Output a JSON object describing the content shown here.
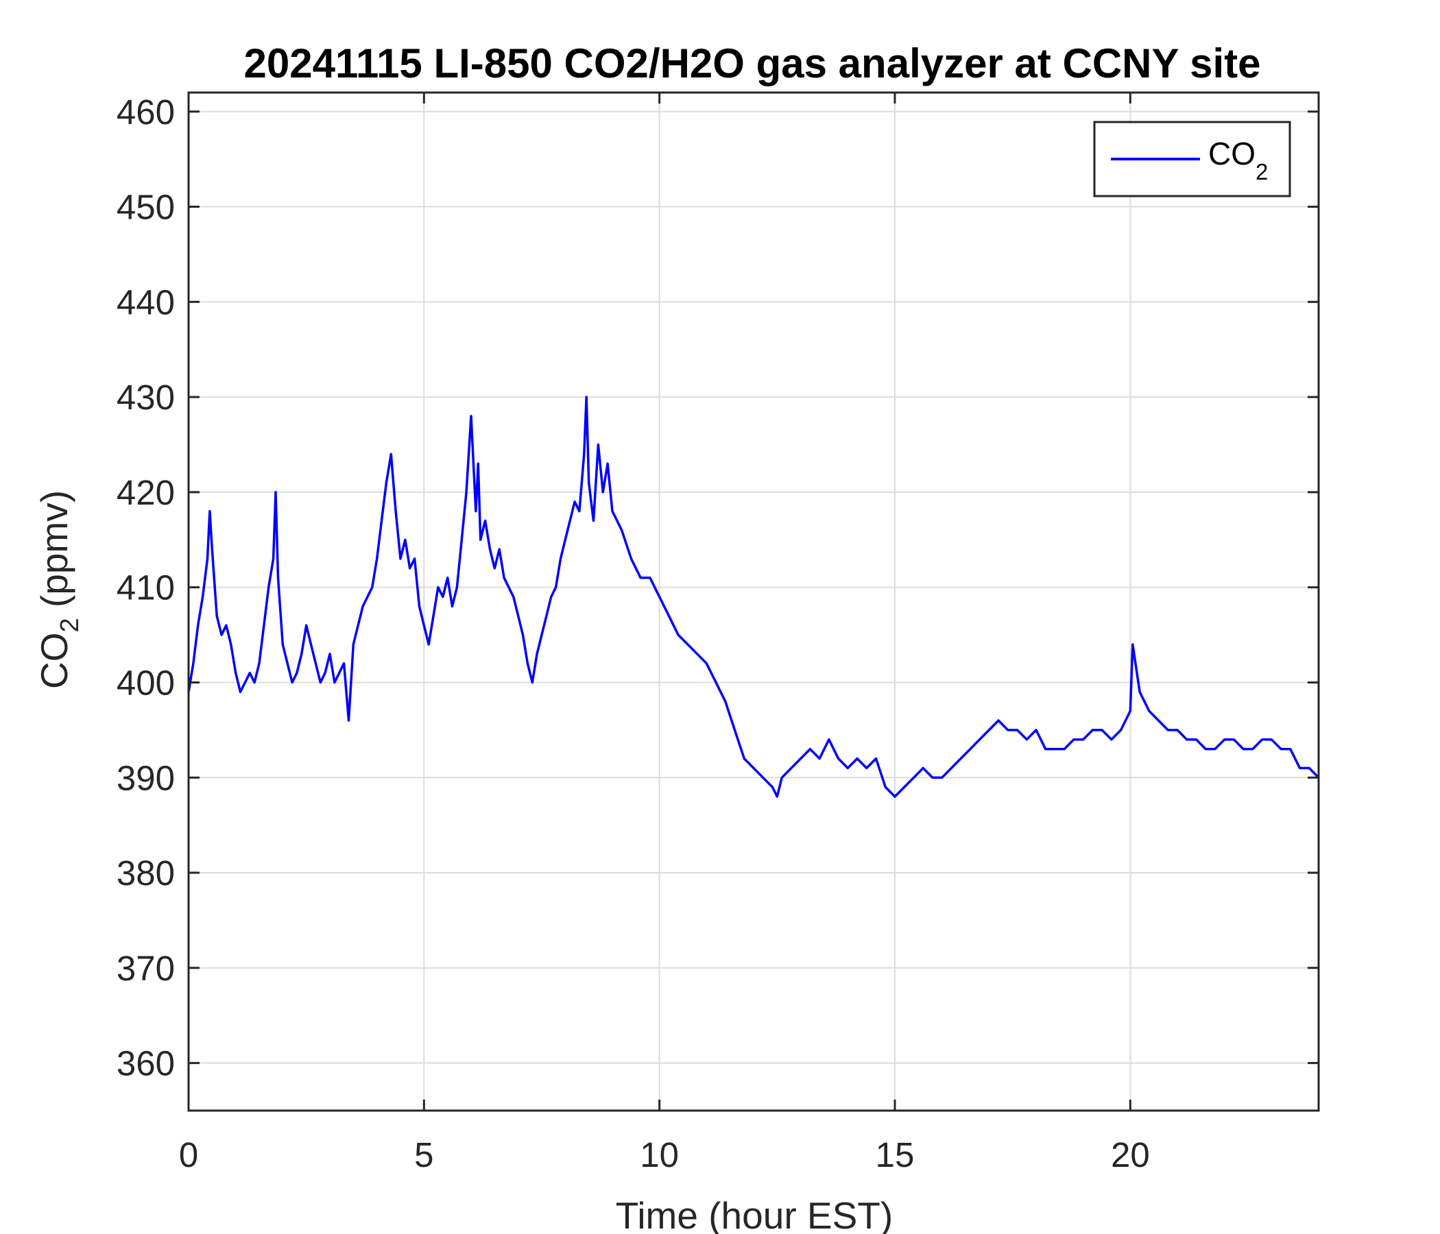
{
  "chart_data": {
    "type": "line",
    "title": "20241115 LI-850 CO2/H2O gas analyzer at CCNY site",
    "xlabel": "Time (hour EST)",
    "ylabel": {
      "base": "CO",
      "sub": "2",
      "rest": " (ppmv)"
    },
    "xlim": [
      0,
      24
    ],
    "ylim": [
      355,
      462
    ],
    "xticks": [
      0,
      5,
      10,
      15,
      20
    ],
    "yticks": [
      360,
      370,
      380,
      390,
      400,
      410,
      420,
      430,
      440,
      450,
      460
    ],
    "grid": true,
    "legend": {
      "position": "top-right"
    },
    "series": [
      {
        "name": {
          "base": "CO",
          "sub": "2"
        },
        "color": "#0000ff",
        "x": [
          0,
          0.1,
          0.2,
          0.3,
          0.4,
          0.45,
          0.5,
          0.6,
          0.7,
          0.8,
          0.9,
          1.0,
          1.1,
          1.2,
          1.3,
          1.4,
          1.5,
          1.6,
          1.7,
          1.8,
          1.85,
          1.9,
          2.0,
          2.1,
          2.2,
          2.3,
          2.4,
          2.5,
          2.6,
          2.7,
          2.8,
          2.9,
          3.0,
          3.1,
          3.2,
          3.3,
          3.4,
          3.5,
          3.6,
          3.7,
          3.8,
          3.9,
          4.0,
          4.1,
          4.2,
          4.3,
          4.4,
          4.5,
          4.6,
          4.7,
          4.8,
          4.9,
          5.0,
          5.1,
          5.2,
          5.3,
          5.4,
          5.5,
          5.6,
          5.7,
          5.8,
          5.9,
          6.0,
          6.1,
          6.15,
          6.2,
          6.3,
          6.4,
          6.5,
          6.6,
          6.7,
          6.8,
          6.9,
          7.0,
          7.1,
          7.2,
          7.3,
          7.4,
          7.5,
          7.6,
          7.7,
          7.8,
          7.9,
          8.0,
          8.1,
          8.2,
          8.3,
          8.4,
          8.45,
          8.5,
          8.6,
          8.7,
          8.8,
          8.9,
          9.0,
          9.2,
          9.4,
          9.6,
          9.8,
          10.0,
          10.2,
          10.4,
          10.6,
          10.8,
          11.0,
          11.2,
          11.4,
          11.6,
          11.8,
          12.0,
          12.2,
          12.4,
          12.5,
          12.6,
          12.8,
          13.0,
          13.2,
          13.4,
          13.6,
          13.8,
          14.0,
          14.2,
          14.4,
          14.6,
          14.8,
          15.0,
          15.2,
          15.4,
          15.6,
          15.8,
          16.0,
          16.2,
          16.4,
          16.6,
          16.8,
          17.0,
          17.2,
          17.4,
          17.6,
          17.8,
          18.0,
          18.2,
          18.4,
          18.6,
          18.8,
          19.0,
          19.2,
          19.4,
          19.6,
          19.8,
          20.0,
          20.05,
          20.2,
          20.4,
          20.6,
          20.8,
          21.0,
          21.2,
          21.4,
          21.6,
          21.8,
          22.0,
          22.2,
          22.4,
          22.6,
          22.8,
          23.0,
          23.2,
          23.4,
          23.6,
          23.8,
          24.0
        ],
        "values": [
          399,
          402,
          406,
          409,
          413,
          418,
          414,
          407,
          405,
          406,
          404,
          401,
          399,
          400,
          401,
          400,
          402,
          406,
          410,
          413,
          420,
          411,
          404,
          402,
          400,
          401,
          403,
          406,
          404,
          402,
          400,
          401,
          403,
          400,
          401,
          402,
          396,
          404,
          406,
          408,
          409,
          410,
          413,
          417,
          421,
          424,
          418,
          413,
          415,
          412,
          413,
          408,
          406,
          404,
          407,
          410,
          409,
          411,
          408,
          410,
          415,
          420,
          428,
          418,
          423,
          415,
          417,
          414,
          412,
          414,
          411,
          410,
          409,
          407,
          405,
          402,
          400,
          403,
          405,
          407,
          409,
          410,
          413,
          415,
          417,
          419,
          418,
          424,
          430,
          421,
          417,
          425,
          420,
          423,
          418,
          416,
          413,
          411,
          411,
          409,
          407,
          405,
          404,
          403,
          402,
          400,
          398,
          395,
          392,
          391,
          390,
          389,
          388,
          390,
          391,
          392,
          393,
          392,
          394,
          392,
          391,
          392,
          391,
          392,
          389,
          388,
          389,
          390,
          391,
          390,
          390,
          391,
          392,
          393,
          394,
          395,
          396,
          395,
          395,
          394,
          395,
          393,
          393,
          393,
          394,
          394,
          395,
          395,
          394,
          395,
          397,
          404,
          399,
          397,
          396,
          395,
          395,
          394,
          394,
          393,
          393,
          394,
          394,
          393,
          393,
          394,
          394,
          393,
          393,
          391,
          391,
          390
        ]
      }
    ]
  }
}
